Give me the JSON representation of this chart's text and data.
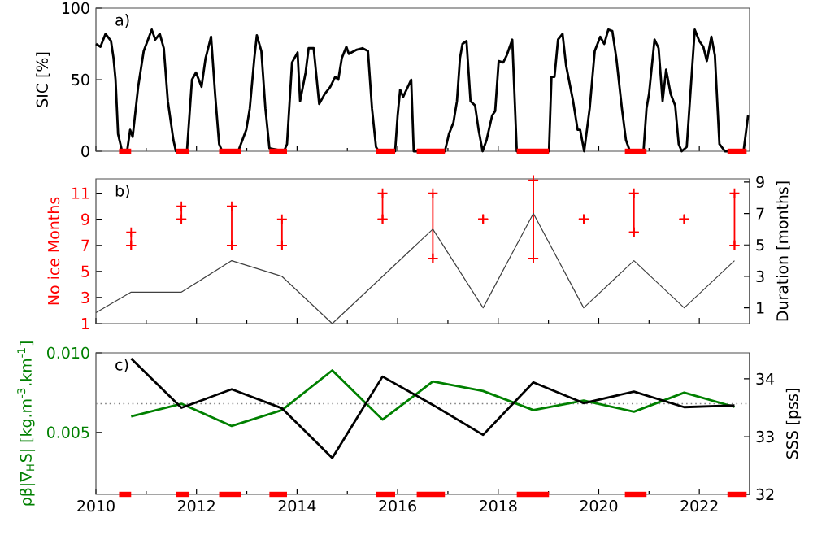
{
  "chart_data": [
    {
      "type": "line",
      "ylabel": "SIC [%]",
      "annotations": [
        "a)"
      ],
      "xlim": [
        2010,
        2023
      ],
      "xticks": [
        2010,
        2012,
        2014,
        2016,
        2018,
        2020,
        2022
      ],
      "ylim": [
        0,
        100
      ],
      "yticks": [
        0,
        50,
        100
      ],
      "tick_labels": "y",
      "series": [
        {
          "color": "#000000",
          "x": [
            2010.0,
            2010.09,
            2010.19,
            2010.3,
            2010.35,
            2010.39,
            2010.44,
            2010.52,
            2010.62,
            2010.68,
            2010.73,
            2010.84,
            2010.95,
            2011.11,
            2011.18,
            2011.27,
            2011.35,
            2011.43,
            2011.54,
            2011.59,
            2011.81,
            2011.91,
            2011.99,
            2012.1,
            2012.18,
            2012.29,
            2012.37,
            2012.45,
            2012.51,
            2012.83,
            2012.99,
            2013.06,
            2013.15,
            2013.2,
            2013.29,
            2013.37,
            2013.45,
            2013.74,
            2013.8,
            2013.9,
            2014.01,
            2014.06,
            2014.17,
            2014.23,
            2014.33,
            2014.44,
            2014.55,
            2014.66,
            2014.76,
            2014.82,
            2014.89,
            2014.98,
            2015.03,
            2015.19,
            2015.3,
            2015.41,
            2015.49,
            2015.57,
            2015.62,
            2015.95,
            2016.0,
            2016.05,
            2016.11,
            2016.27,
            2016.32,
            2016.94,
            2017.02,
            2017.11,
            2017.18,
            2017.24,
            2017.29,
            2017.37,
            2017.45,
            2017.54,
            2017.61,
            2017.69,
            2017.77,
            2017.88,
            2017.94,
            2018.01,
            2018.1,
            2018.17,
            2018.28,
            2018.37,
            2019.01,
            2019.06,
            2019.12,
            2019.19,
            2019.28,
            2019.35,
            2019.49,
            2019.58,
            2019.63,
            2019.71,
            2019.82,
            2019.92,
            2020.03,
            2020.11,
            2020.19,
            2020.27,
            2020.35,
            2020.46,
            2020.54,
            2020.62,
            2020.89,
            2020.95,
            2021.0,
            2021.11,
            2021.19,
            2021.27,
            2021.34,
            2021.43,
            2021.52,
            2021.59,
            2021.65,
            2021.75,
            2021.91,
            2022.0,
            2022.08,
            2022.15,
            2022.24,
            2022.31,
            2022.4,
            2022.51,
            2022.88,
            2022.97
          ],
          "values": [
            75,
            73,
            82,
            77,
            65,
            50,
            12,
            0,
            0,
            15,
            10,
            45,
            70,
            85,
            78,
            82,
            72,
            35,
            8,
            0,
            0,
            50,
            55,
            45,
            65,
            80,
            40,
            5,
            0,
            0,
            15,
            30,
            65,
            81,
            70,
            30,
            2,
            0,
            5,
            62,
            69,
            35,
            55,
            72,
            72,
            33,
            40,
            45,
            52,
            50,
            65,
            73,
            68,
            71,
            72,
            70,
            30,
            3,
            0,
            0,
            25,
            43,
            38,
            50,
            0,
            0,
            12,
            20,
            35,
            65,
            75,
            77,
            35,
            32,
            15,
            0,
            8,
            25,
            28,
            63,
            62,
            67,
            78,
            0,
            0,
            52,
            52,
            78,
            82,
            60,
            35,
            15,
            15,
            0,
            30,
            70,
            80,
            75,
            85,
            84,
            65,
            30,
            8,
            0,
            0,
            30,
            40,
            78,
            72,
            35,
            57,
            40,
            32,
            5,
            0,
            3,
            85,
            77,
            73,
            63,
            80,
            67,
            5,
            0,
            0,
            25
          ]
        },
        {
          "color": "#ff0000",
          "x": [
            2010.46,
            2010.7
          ],
          "values": [
            0,
            0
          ]
        },
        {
          "color": "#ff0000",
          "x": [
            2011.59,
            2011.86
          ],
          "values": [
            0,
            0
          ]
        },
        {
          "color": "#ff0000",
          "x": [
            2012.45,
            2012.88
          ],
          "values": [
            0,
            0
          ]
        },
        {
          "color": "#ff0000",
          "x": [
            2013.45,
            2013.8
          ],
          "values": [
            0,
            0
          ]
        },
        {
          "color": "#ff0000",
          "x": [
            2015.57,
            2015.95
          ],
          "values": [
            0,
            0
          ]
        },
        {
          "color": "#ff0000",
          "x": [
            2016.38,
            2016.94
          ],
          "values": [
            0,
            0
          ]
        },
        {
          "color": "#ff0000",
          "x": [
            2018.37,
            2019.01
          ],
          "values": [
            0,
            0
          ]
        },
        {
          "color": "#ff0000",
          "x": [
            2020.52,
            2020.95
          ],
          "values": [
            0,
            0
          ]
        },
        {
          "color": "#ff0000",
          "x": [
            2022.56,
            2022.94
          ],
          "values": [
            0,
            0
          ]
        }
      ]
    },
    {
      "type": "scatter",
      "ylabel": "No ice Months",
      "y2label": "Duration [months]",
      "annotations": [
        "b)"
      ],
      "xlim": [
        2010,
        2023
      ],
      "xticks": [
        2010,
        2012,
        2014,
        2016,
        2018,
        2020,
        2022
      ],
      "ylim": [
        1,
        12.1
      ],
      "yticks": [
        1,
        3,
        5,
        7,
        9,
        11
      ],
      "y2lim": [
        0,
        9.2
      ],
      "y2ticks": [
        1,
        3,
        5,
        7,
        9
      ],
      "tick_labels": "y",
      "series": [
        {
          "type": "scatter",
          "marker": "cross",
          "color": "#ff0000",
          "x": [
            2010.7,
            2011.7,
            2012.7,
            2013.7,
            2015.7,
            2016.7,
            2017.7,
            2018.7,
            2019.7,
            2020.7,
            2021.7,
            2022.7
          ],
          "values": [
            7,
            9,
            7,
            7,
            9,
            6,
            9,
            6,
            9,
            8,
            9,
            7
          ],
          "errors": [
            [
              7,
              8
            ],
            [
              9,
              10
            ],
            [
              7,
              10
            ],
            [
              7,
              9
            ],
            [
              9,
              11
            ],
            [
              6,
              11
            ],
            0,
            [
              6,
              12
            ],
            0,
            [
              8,
              11
            ],
            0,
            [
              7,
              11
            ]
          ]
        },
        {
          "type": "line",
          "axis": "y2",
          "color": "#404040",
          "x": [
            2010.0,
            2010.7,
            2011.7,
            2012.7,
            2013.7,
            2014.7,
            2015.7,
            2016.7,
            2017.7,
            2018.7,
            2019.7,
            2020.7,
            2021.7,
            2022.7
          ],
          "values": [
            0.7,
            2,
            2,
            4,
            3,
            0,
            3,
            6,
            1,
            7,
            1,
            4,
            1,
            4
          ]
        }
      ]
    },
    {
      "type": "line",
      "ylabel": "ρβ|∇$_{H}$S| [kg.m$^{-3}$.km$^{-1}$]",
      "y2label": "SSS [pss]",
      "annotations": [
        "c)"
      ],
      "xlim": [
        2010,
        2023
      ],
      "xticks": [
        2010,
        2012,
        2014,
        2016,
        2018,
        2020,
        2022
      ],
      "ylim": [
        0.0011,
        0.01
      ],
      "yticks": [
        {
          "value": 0.005,
          "label": "0.005"
        },
        {
          "value": 0.01,
          "label": "0.010"
        }
      ],
      "y2lim": [
        32,
        34.45
      ],
      "y2ticks": [
        32,
        33,
        34
      ],
      "series": [
        {
          "color": "#008000",
          "x": [
            2010.7,
            2011.7,
            2012.7,
            2013.7,
            2014.7,
            2015.7,
            2016.7,
            2017.7,
            2018.7,
            2019.7,
            2020.7,
            2021.7,
            2022.7
          ],
          "values": [
            0.006,
            0.0068,
            0.0054,
            0.0064,
            0.0089,
            0.0058,
            0.0082,
            0.0076,
            0.0064,
            0.007,
            0.0063,
            0.0075,
            0.0066
          ]
        },
        {
          "color": "#000000",
          "axis": "y2",
          "x": [
            2010.7,
            2011.7,
            2012.7,
            2013.7,
            2014.7,
            2015.7,
            2016.7,
            2017.7,
            2018.7,
            2019.7,
            2020.7,
            2021.7,
            2022.7
          ],
          "values": [
            34.35,
            33.5,
            33.82,
            33.49,
            32.63,
            34.04,
            33.55,
            33.03,
            33.94,
            33.58,
            33.78,
            33.51,
            33.54
          ]
        },
        {
          "color": "#ff0000",
          "axis": "y2",
          "x": [
            2010.46,
            2010.7
          ],
          "values": [
            32,
            32
          ]
        },
        {
          "color": "#ff0000",
          "axis": "y2",
          "x": [
            2011.59,
            2011.86
          ],
          "values": [
            32,
            32
          ]
        },
        {
          "color": "#ff0000",
          "axis": "y2",
          "x": [
            2012.45,
            2012.88
          ],
          "values": [
            32,
            32
          ]
        },
        {
          "color": "#ff0000",
          "axis": "y2",
          "x": [
            2013.45,
            2013.8
          ],
          "values": [
            32,
            32
          ]
        },
        {
          "color": "#ff0000",
          "axis": "y2",
          "x": [
            2015.57,
            2015.95
          ],
          "values": [
            32,
            32
          ]
        },
        {
          "color": "#ff0000",
          "axis": "y2",
          "x": [
            2016.38,
            2016.94
          ],
          "values": [
            32,
            32
          ]
        },
        {
          "color": "#ff0000",
          "axis": "y2",
          "x": [
            2018.37,
            2019.01
          ],
          "values": [
            32,
            32
          ]
        },
        {
          "color": "#ff0000",
          "axis": "y2",
          "x": [
            2020.52,
            2020.95
          ],
          "values": [
            32,
            32
          ]
        },
        {
          "color": "#ff0000",
          "axis": "y2",
          "x": [
            2022.56,
            2022.94
          ],
          "values": [
            32,
            32
          ]
        }
      ],
      "ref_lines": [
        {
          "axis": "y",
          "value": 0.0068,
          "color": "#808080",
          "line_style": "dotted"
        }
      ]
    }
  ]
}
